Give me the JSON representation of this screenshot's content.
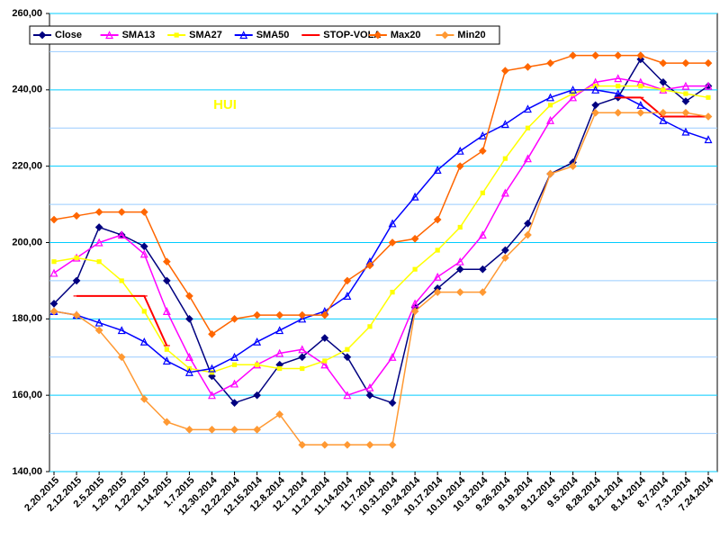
{
  "chart_data": {
    "type": "line",
    "annotation": "HUI",
    "categories": [
      "2.20.2015",
      "2.12.2015",
      "2.5.2015",
      "1.29.2015",
      "1.22.2015",
      "1.14.2015",
      "1.7.2015",
      "12.30.2014",
      "12.22.2014",
      "12.15.2014",
      "12.8.2014",
      "12.1.2014",
      "11.21.2014",
      "11.14.2014",
      "11.7.2014",
      "10.31.2014",
      "10.24.2014",
      "10.17.2014",
      "10.10.2014",
      "10.3.2014",
      "9.26.2014",
      "9.19.2014",
      "9.12.2014",
      "9.5.2014",
      "8.28.2014",
      "8.21.2014",
      "8.14.2014",
      "8.7.2014",
      "7.31.2014",
      "7.24.2014"
    ],
    "series": [
      {
        "name": "Close",
        "color": "#000080",
        "marker": "diamond",
        "values": [
          184,
          190,
          204,
          202,
          199,
          190,
          180,
          165,
          158,
          160,
          168,
          170,
          175,
          170,
          160,
          158,
          183,
          188,
          193,
          193,
          198,
          205,
          218,
          221,
          236,
          238,
          248,
          242,
          237,
          241
        ]
      },
      {
        "name": "SMA13",
        "color": "#ff00ff",
        "marker": "triangle",
        "values": [
          192,
          196,
          200,
          202,
          197,
          182,
          170,
          160,
          163,
          168,
          171,
          172,
          168,
          160,
          162,
          170,
          184,
          191,
          195,
          202,
          213,
          222,
          232,
          238,
          242,
          243,
          242,
          240,
          241,
          241
        ]
      },
      {
        "name": "SMA27",
        "color": "#ffff00",
        "marker": "square",
        "values": [
          195,
          196,
          195,
          190,
          182,
          172,
          167,
          166,
          168,
          168,
          167,
          167,
          169,
          172,
          178,
          187,
          193,
          198,
          204,
          213,
          222,
          230,
          236,
          239,
          241,
          241,
          241,
          240,
          239,
          238
        ]
      },
      {
        "name": "SMA50",
        "color": "#0000ff",
        "marker": "triangle",
        "values": [
          182,
          181,
          179,
          177,
          174,
          169,
          166,
          167,
          170,
          174,
          177,
          180,
          182,
          186,
          195,
          205,
          212,
          219,
          224,
          228,
          231,
          235,
          238,
          240,
          240,
          239,
          236,
          232,
          229,
          227
        ]
      },
      {
        "name": "STOP-VOLA",
        "color": "#ff0000",
        "marker": "dash",
        "values": [
          null,
          186,
          186,
          186,
          186,
          173,
          null,
          null,
          null,
          null,
          null,
          null,
          null,
          null,
          null,
          null,
          null,
          null,
          null,
          null,
          null,
          null,
          null,
          null,
          null,
          238,
          238,
          233,
          233,
          233
        ]
      },
      {
        "name": "Max20",
        "color": "#ff6600",
        "marker": "diamond",
        "values": [
          206,
          207,
          208,
          208,
          208,
          195,
          186,
          176,
          180,
          181,
          181,
          181,
          181,
          190,
          194,
          200,
          201,
          206,
          220,
          224,
          245,
          246,
          247,
          249,
          249,
          249,
          249,
          247,
          247,
          247
        ]
      },
      {
        "name": "Min20",
        "color": "#ff9933",
        "marker": "diamond",
        "values": [
          182,
          181,
          177,
          170,
          159,
          153,
          151,
          151,
          151,
          151,
          155,
          147,
          147,
          147,
          147,
          147,
          182,
          187,
          187,
          187,
          196,
          202,
          218,
          220,
          234,
          234,
          234,
          234,
          234,
          233
        ]
      }
    ],
    "ylim": [
      140,
      260
    ],
    "yticks": [
      {
        "value": 140,
        "label": "140,00"
      },
      {
        "value": 160,
        "label": "160,00"
      },
      {
        "value": 180,
        "label": "180,00"
      },
      {
        "value": 200,
        "label": "200,00"
      },
      {
        "value": 220,
        "label": "220,00"
      },
      {
        "value": 240,
        "label": "240,00"
      },
      {
        "value": 260,
        "label": "260,00"
      }
    ],
    "minor_yticks": [
      150,
      170,
      190,
      210,
      230,
      250
    ],
    "grid": true,
    "legend": "top"
  }
}
